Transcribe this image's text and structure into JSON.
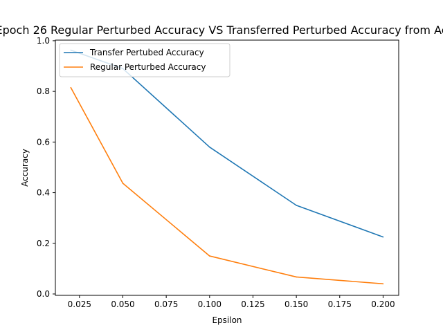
{
  "chart_data": {
    "type": "line",
    "title": "Epoch 26 Regular Perturbed Accuracy VS Transferred Perturbed Accuracy from Ac",
    "xlabel": "Epsilon",
    "ylabel": "Accuracy",
    "xlim": [
      0.0111,
      0.209
    ],
    "ylim": [
      -0.0055,
      1.0025
    ],
    "xticks": [
      "0.025",
      "0.050",
      "0.075",
      "0.100",
      "0.125",
      "0.150",
      "0.175",
      "0.200"
    ],
    "yticks": [
      "0.0",
      "0.2",
      "0.4",
      "0.6",
      "0.8",
      "1.0"
    ],
    "grid": false,
    "legend_position": "top-left",
    "series": [
      {
        "name": "Transfer Pertubed Accuracy",
        "color": "#1f77b4",
        "x": [
          0.02,
          0.05,
          0.1,
          0.15,
          0.2
        ],
        "y": [
          0.963,
          0.89,
          0.58,
          0.35,
          0.225
        ]
      },
      {
        "name": "Regular Perturbed Accuracy",
        "color": "#ff7f0e",
        "x": [
          0.02,
          0.05,
          0.1,
          0.15,
          0.2
        ],
        "y": [
          0.815,
          0.437,
          0.15,
          0.067,
          0.04
        ]
      }
    ]
  }
}
